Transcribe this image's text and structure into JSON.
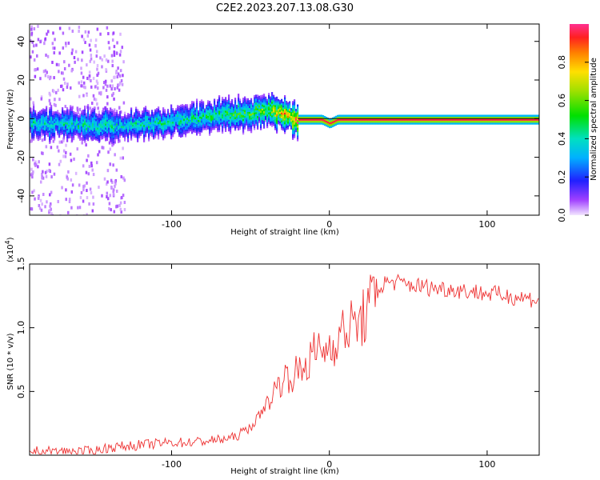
{
  "title": "C2E2.2023.207.13.08.G30",
  "colors": {
    "snr_line": "#ee3333",
    "axes": "#000000"
  },
  "chart_data": [
    {
      "type": "heatmap",
      "xlabel": "Height of straight line (km)",
      "ylabel": "Frequency (Hz)",
      "xlim": [
        -190,
        133
      ],
      "ylim": [
        -50,
        49
      ],
      "x_ticks": [
        -100,
        0,
        100
      ],
      "x_tick_labels": [
        "-100",
        "0",
        "100"
      ],
      "y_ticks": [
        -40,
        -20,
        0,
        20,
        40
      ],
      "y_tick_labels": [
        "-40",
        "-20",
        "0",
        "20",
        "40"
      ],
      "colorbar": {
        "label": "Normalized spectral amplitude",
        "range": [
          0,
          1
        ],
        "ticks": [
          0.0,
          0.2,
          0.4,
          0.6,
          0.8
        ],
        "tick_labels": [
          "0.0",
          "0.2",
          "0.4",
          "0.6",
          "0.8"
        ]
      },
      "ridge": {
        "x": [
          -190,
          -170,
          -150,
          -130,
          -110,
          -90,
          -70,
          -60,
          -50,
          -40,
          -30,
          -20,
          -5,
          0,
          5,
          20,
          60,
          100,
          133
        ],
        "y": [
          -2,
          -2,
          -3,
          -3,
          -2,
          0,
          2,
          3,
          4,
          5,
          3,
          0,
          0,
          -2,
          0,
          0,
          0,
          0,
          0
        ],
        "peak": [
          0.45,
          0.45,
          0.5,
          0.45,
          0.5,
          0.5,
          0.55,
          0.6,
          0.6,
          0.7,
          0.9,
          0.95,
          0.95,
          0.95,
          0.95,
          0.95,
          0.95,
          0.95,
          0.95
        ]
      }
    },
    {
      "type": "line",
      "xlabel": "Height of straight line (km)",
      "ylabel": "SNR (10 * v/v)",
      "y_multiplier": "(x10",
      "y_multiplier_exp": "4",
      "y_multiplier_close": ")",
      "xlim": [
        -190,
        133
      ],
      "ylim": [
        0,
        1.5
      ],
      "x_ticks": [
        -100,
        0,
        100
      ],
      "x_tick_labels": [
        "-100",
        "0",
        "100"
      ],
      "y_ticks": [
        0.5,
        1.0,
        1.5
      ],
      "y_tick_labels": [
        "0.5",
        "1.0",
        "1.5"
      ],
      "series": [
        {
          "x": [
            -190,
            -170,
            -150,
            -140,
            -120,
            -100,
            -90,
            -70,
            -60,
            -50,
            -45,
            -40,
            -35,
            -30,
            -25,
            -20,
            -15,
            -10,
            -5,
            0,
            5,
            10,
            15,
            20,
            25,
            30,
            35,
            40,
            60,
            80,
            100,
            120,
            133
          ],
          "y": [
            0.03,
            0.03,
            0.03,
            0.06,
            0.08,
            0.1,
            0.1,
            0.12,
            0.14,
            0.22,
            0.3,
            0.4,
            0.5,
            0.6,
            0.62,
            0.65,
            0.7,
            0.8,
            0.82,
            0.85,
            0.92,
            0.98,
            1.02,
            1.05,
            1.15,
            1.28,
            1.35,
            1.36,
            1.32,
            1.3,
            1.27,
            1.24,
            1.22
          ]
        }
      ]
    }
  ]
}
